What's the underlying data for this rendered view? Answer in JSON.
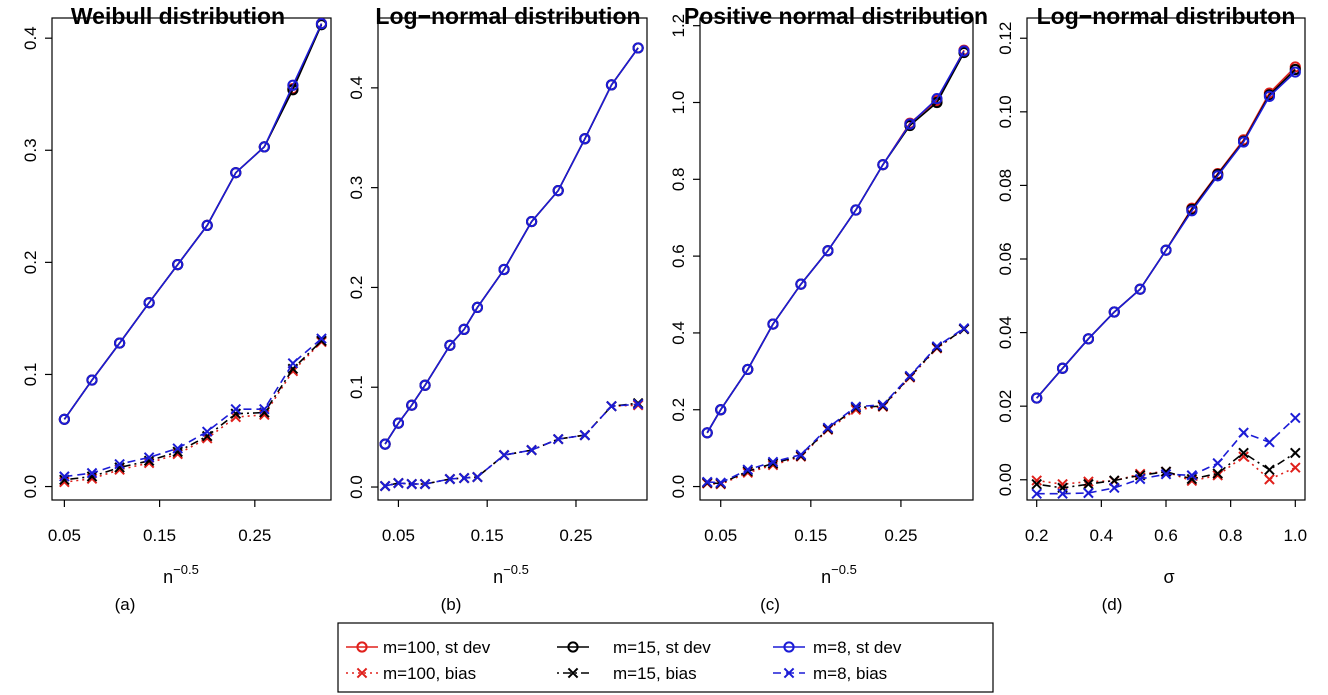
{
  "colors": {
    "m100": "#e0201b",
    "m15": "#000000",
    "m8": "#1c1cd6"
  },
  "legend": [
    {
      "key": "m100_sd",
      "label": "m=100, st dev",
      "color": "#e0201b",
      "marker": "circle",
      "line": "solid"
    },
    {
      "key": "m15_sd",
      "label": "m=15, st dev",
      "color": "#000000",
      "marker": "circle",
      "line": "solid"
    },
    {
      "key": "m8_sd",
      "label": "m=8, st dev",
      "color": "#1c1cd6",
      "marker": "circle",
      "line": "solid"
    },
    {
      "key": "m100_bias",
      "label": "m=100, bias",
      "color": "#e0201b",
      "marker": "cross",
      "line": "dotted"
    },
    {
      "key": "m15_bias",
      "label": "m=15, bias",
      "color": "#000000",
      "marker": "cross",
      "line": "dotdash"
    },
    {
      "key": "m8_bias",
      "label": "m=8, bias",
      "color": "#1c1cd6",
      "marker": "cross",
      "line": "dashed"
    }
  ],
  "chart_data": [
    {
      "type": "line",
      "title": "Weibull distribution",
      "sublabel": "(a)",
      "xlabel": "n",
      "xlabel_exp": "−0.5",
      "xlim": [
        0.037,
        0.33
      ],
      "ylim": [
        -0.012,
        0.418
      ],
      "xticks": [
        0.05,
        0.15,
        0.25
      ],
      "xtick_labels": [
        "0.05",
        "0.15",
        "0.25"
      ],
      "yticks": [
        0.0,
        0.1,
        0.2,
        0.3,
        0.4
      ],
      "ytick_labels": [
        "0.0",
        "0.1",
        "0.2",
        "0.3",
        "0.4"
      ],
      "x": [
        0.05,
        0.079,
        0.108,
        0.139,
        0.169,
        0.2,
        0.23,
        0.26,
        0.29,
        0.32
      ],
      "series": [
        {
          "name": "m=100, st dev",
          "key": "m100_sd",
          "values": [
            0.06,
            0.095,
            0.128,
            0.164,
            0.198,
            0.233,
            0.28,
            0.303,
            0.355,
            0.413
          ]
        },
        {
          "name": "m=15, st dev",
          "key": "m15_sd",
          "values": [
            0.06,
            0.095,
            0.128,
            0.164,
            0.198,
            0.233,
            0.28,
            0.303,
            0.354,
            0.412
          ]
        },
        {
          "name": "m=8, st dev",
          "key": "m8_sd",
          "values": [
            0.06,
            0.095,
            0.128,
            0.164,
            0.198,
            0.233,
            0.28,
            0.303,
            0.358,
            0.413
          ]
        },
        {
          "name": "m=100, bias",
          "key": "m100_bias",
          "values": [
            0.004,
            0.007,
            0.015,
            0.021,
            0.029,
            0.043,
            0.062,
            0.064,
            0.103,
            0.129
          ]
        },
        {
          "name": "m=15, bias",
          "key": "m15_bias",
          "values": [
            0.006,
            0.009,
            0.017,
            0.023,
            0.031,
            0.045,
            0.065,
            0.066,
            0.105,
            0.13
          ]
        },
        {
          "name": "m=8, bias",
          "key": "m8_bias",
          "values": [
            0.009,
            0.012,
            0.02,
            0.026,
            0.034,
            0.049,
            0.069,
            0.069,
            0.11,
            0.132
          ]
        }
      ]
    },
    {
      "type": "line",
      "title": "Log−normal distribution",
      "sublabel": "(b)",
      "xlabel": "n",
      "xlabel_exp": "−0.5",
      "xlim": [
        0.027,
        0.33
      ],
      "ylim": [
        -0.013,
        0.47
      ],
      "xticks": [
        0.05,
        0.15,
        0.25
      ],
      "xtick_labels": [
        "0.05",
        "0.15",
        "0.25"
      ],
      "yticks": [
        0.0,
        0.1,
        0.2,
        0.3,
        0.4
      ],
      "ytick_labels": [
        "0.0",
        "0.1",
        "0.2",
        "0.3",
        "0.4"
      ],
      "x": [
        0.035,
        0.05,
        0.065,
        0.08,
        0.108,
        0.124,
        0.139,
        0.169,
        0.2,
        0.23,
        0.26,
        0.29,
        0.32
      ],
      "series": [
        {
          "name": "m=100, st dev",
          "key": "m100_sd",
          "values": [
            0.043,
            0.064,
            0.082,
            0.102,
            0.142,
            0.158,
            0.18,
            0.218,
            0.266,
            0.297,
            0.349,
            0.403,
            0.44
          ]
        },
        {
          "name": "m=15, st dev",
          "key": "m15_sd",
          "values": [
            0.043,
            0.064,
            0.082,
            0.102,
            0.142,
            0.158,
            0.18,
            0.218,
            0.266,
            0.297,
            0.349,
            0.403,
            0.44
          ]
        },
        {
          "name": "m=8, st dev",
          "key": "m8_sd",
          "values": [
            0.043,
            0.064,
            0.082,
            0.102,
            0.142,
            0.158,
            0.18,
            0.218,
            0.266,
            0.297,
            0.349,
            0.403,
            0.44
          ]
        },
        {
          "name": "m=100, bias",
          "key": "m100_bias",
          "values": [
            0.001,
            0.004,
            0.003,
            0.003,
            0.008,
            0.009,
            0.01,
            0.032,
            0.037,
            0.048,
            0.052,
            0.081,
            0.082
          ]
        },
        {
          "name": "m=15, bias",
          "key": "m15_bias",
          "values": [
            0.001,
            0.004,
            0.003,
            0.003,
            0.008,
            0.009,
            0.01,
            0.032,
            0.037,
            0.048,
            0.052,
            0.081,
            0.084
          ]
        },
        {
          "name": "m=8, bias",
          "key": "m8_bias",
          "values": [
            0.001,
            0.004,
            0.003,
            0.003,
            0.008,
            0.009,
            0.01,
            0.032,
            0.037,
            0.048,
            0.052,
            0.081,
            0.083
          ]
        }
      ]
    },
    {
      "type": "line",
      "title": "Positive normal distribution",
      "sublabel": "(c)",
      "xlabel": "n",
      "xlabel_exp": "−0.5",
      "xlim": [
        0.027,
        0.33
      ],
      "ylim": [
        -0.035,
        1.22
      ],
      "xticks": [
        0.05,
        0.15,
        0.25
      ],
      "xtick_labels": [
        "0.05",
        "0.15",
        "0.25"
      ],
      "yticks": [
        0.0,
        0.2,
        0.4,
        0.6,
        0.8,
        1.0,
        1.2
      ],
      "ytick_labels": [
        "0.0",
        "0.2",
        "0.4",
        "0.6",
        "0.8",
        "1.0",
        "1.2"
      ],
      "x": [
        0.035,
        0.05,
        0.08,
        0.108,
        0.139,
        0.169,
        0.2,
        0.23,
        0.26,
        0.29,
        0.32
      ],
      "series": [
        {
          "name": "m=100, st dev",
          "key": "m100_sd",
          "values": [
            0.14,
            0.2,
            0.305,
            0.423,
            0.527,
            0.614,
            0.72,
            0.838,
            0.946,
            1.005,
            1.136
          ]
        },
        {
          "name": "m=15, st dev",
          "key": "m15_sd",
          "values": [
            0.14,
            0.2,
            0.305,
            0.423,
            0.527,
            0.614,
            0.72,
            0.838,
            0.94,
            1.0,
            1.13
          ]
        },
        {
          "name": "m=8, st dev",
          "key": "m8_sd",
          "values": [
            0.14,
            0.2,
            0.305,
            0.423,
            0.527,
            0.614,
            0.72,
            0.838,
            0.944,
            1.01,
            1.134
          ]
        },
        {
          "name": "m=100, bias",
          "key": "m100_bias",
          "values": [
            0.008,
            0.006,
            0.036,
            0.056,
            0.078,
            0.148,
            0.2,
            0.208,
            0.284,
            0.36,
            0.41
          ]
        },
        {
          "name": "m=15, bias",
          "key": "m15_bias",
          "values": [
            0.01,
            0.008,
            0.04,
            0.06,
            0.08,
            0.15,
            0.205,
            0.21,
            0.286,
            0.362,
            0.41
          ]
        },
        {
          "name": "m=8, bias",
          "key": "m8_bias",
          "values": [
            0.012,
            0.01,
            0.044,
            0.064,
            0.083,
            0.153,
            0.208,
            0.213,
            0.288,
            0.365,
            0.412
          ]
        }
      ]
    },
    {
      "type": "line",
      "title": "Log−normal distributon",
      "sublabel": "(d)",
      "xlabel": "σ",
      "xlabel_exp": "",
      "xlim": [
        0.17,
        1.03
      ],
      "ylim": [
        -0.0055,
        0.1255
      ],
      "xticks": [
        0.2,
        0.4,
        0.6,
        0.8,
        1.0
      ],
      "xtick_labels": [
        "0.2",
        "0.4",
        "0.6",
        "0.8",
        "1.0"
      ],
      "yticks": [
        0.0,
        0.02,
        0.04,
        0.06,
        0.08,
        0.1,
        0.12
      ],
      "ytick_labels": [
        "0.00",
        "0.02",
        "0.04",
        "0.06",
        "0.08",
        "0.10",
        "0.12"
      ],
      "x": [
        0.2,
        0.28,
        0.36,
        0.44,
        0.52,
        0.6,
        0.68,
        0.76,
        0.84,
        0.92,
        1.0
      ],
      "series": [
        {
          "name": "m=100, st dev",
          "key": "m100_sd",
          "values": [
            0.0222,
            0.0303,
            0.0383,
            0.0456,
            0.0518,
            0.0624,
            0.0738,
            0.0832,
            0.0924,
            0.1051,
            0.1122
          ]
        },
        {
          "name": "m=15, st dev",
          "key": "m15_sd",
          "values": [
            0.0222,
            0.0303,
            0.0383,
            0.0456,
            0.0518,
            0.0624,
            0.0735,
            0.083,
            0.092,
            0.1046,
            0.1115
          ]
        },
        {
          "name": "m=8, st dev",
          "key": "m8_sd",
          "values": [
            0.0222,
            0.0303,
            0.0383,
            0.0456,
            0.0518,
            0.0624,
            0.0731,
            0.0826,
            0.0918,
            0.1042,
            0.1108
          ]
        },
        {
          "name": "m=100, bias",
          "key": "m100_bias",
          "values": [
            -0.0002,
            -0.0012,
            -0.0005,
            -0.0003,
            0.0016,
            0.0022,
            -0.0003,
            0.0012,
            0.0063,
            0.0001,
            0.0033
          ]
        },
        {
          "name": "m=15, bias",
          "key": "m15_bias",
          "values": [
            -0.0012,
            -0.0022,
            -0.0012,
            -0.0002,
            0.0012,
            0.0022,
            0.0002,
            0.0017,
            0.0073,
            0.0027,
            0.0073
          ]
        },
        {
          "name": "m=8, bias",
          "key": "m8_bias",
          "values": [
            -0.0038,
            -0.0038,
            -0.0036,
            -0.0022,
            0.0002,
            0.0015,
            0.0012,
            0.0045,
            0.0128,
            0.0102,
            0.0168
          ]
        }
      ]
    }
  ]
}
